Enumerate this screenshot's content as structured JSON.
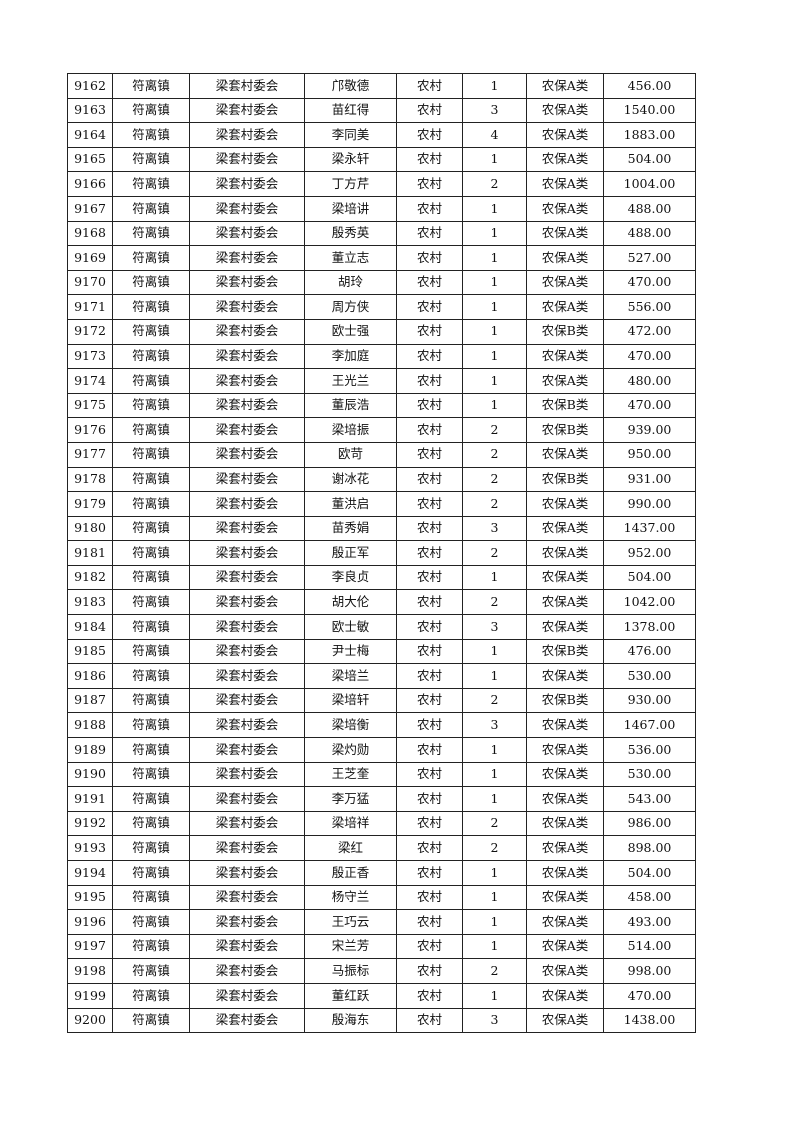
{
  "table": {
    "rows": [
      [
        "9162",
        "符离镇",
        "梁套村委会",
        "邝敬德",
        "农村",
        "1",
        "农保A类",
        "456.00"
      ],
      [
        "9163",
        "符离镇",
        "梁套村委会",
        "苗红得",
        "农村",
        "3",
        "农保A类",
        "1540.00"
      ],
      [
        "9164",
        "符离镇",
        "梁套村委会",
        "李同美",
        "农村",
        "4",
        "农保A类",
        "1883.00"
      ],
      [
        "9165",
        "符离镇",
        "梁套村委会",
        "梁永轩",
        "农村",
        "1",
        "农保A类",
        "504.00"
      ],
      [
        "9166",
        "符离镇",
        "梁套村委会",
        "丁方芹",
        "农村",
        "2",
        "农保A类",
        "1004.00"
      ],
      [
        "9167",
        "符离镇",
        "梁套村委会",
        "梁培讲",
        "农村",
        "1",
        "农保A类",
        "488.00"
      ],
      [
        "9168",
        "符离镇",
        "梁套村委会",
        "殷秀英",
        "农村",
        "1",
        "农保A类",
        "488.00"
      ],
      [
        "9169",
        "符离镇",
        "梁套村委会",
        "董立志",
        "农村",
        "1",
        "农保A类",
        "527.00"
      ],
      [
        "9170",
        "符离镇",
        "梁套村委会",
        "胡玲",
        "农村",
        "1",
        "农保A类",
        "470.00"
      ],
      [
        "9171",
        "符离镇",
        "梁套村委会",
        "周方侠",
        "农村",
        "1",
        "农保A类",
        "556.00"
      ],
      [
        "9172",
        "符离镇",
        "梁套村委会",
        "欧士强",
        "农村",
        "1",
        "农保B类",
        "472.00"
      ],
      [
        "9173",
        "符离镇",
        "梁套村委会",
        "李加庭",
        "农村",
        "1",
        "农保A类",
        "470.00"
      ],
      [
        "9174",
        "符离镇",
        "梁套村委会",
        "王光兰",
        "农村",
        "1",
        "农保A类",
        "480.00"
      ],
      [
        "9175",
        "符离镇",
        "梁套村委会",
        "董辰浩",
        "农村",
        "1",
        "农保B类",
        "470.00"
      ],
      [
        "9176",
        "符离镇",
        "梁套村委会",
        "梁培振",
        "农村",
        "2",
        "农保B类",
        "939.00"
      ],
      [
        "9177",
        "符离镇",
        "梁套村委会",
        "欧苛",
        "农村",
        "2",
        "农保A类",
        "950.00"
      ],
      [
        "9178",
        "符离镇",
        "梁套村委会",
        "谢冰花",
        "农村",
        "2",
        "农保B类",
        "931.00"
      ],
      [
        "9179",
        "符离镇",
        "梁套村委会",
        "董洪启",
        "农村",
        "2",
        "农保A类",
        "990.00"
      ],
      [
        "9180",
        "符离镇",
        "梁套村委会",
        "苗秀娟",
        "农村",
        "3",
        "农保A类",
        "1437.00"
      ],
      [
        "9181",
        "符离镇",
        "梁套村委会",
        "殷正军",
        "农村",
        "2",
        "农保A类",
        "952.00"
      ],
      [
        "9182",
        "符离镇",
        "梁套村委会",
        "李良贞",
        "农村",
        "1",
        "农保A类",
        "504.00"
      ],
      [
        "9183",
        "符离镇",
        "梁套村委会",
        "胡大伦",
        "农村",
        "2",
        "农保A类",
        "1042.00"
      ],
      [
        "9184",
        "符离镇",
        "梁套村委会",
        "欧士敏",
        "农村",
        "3",
        "农保A类",
        "1378.00"
      ],
      [
        "9185",
        "符离镇",
        "梁套村委会",
        "尹士梅",
        "农村",
        "1",
        "农保B类",
        "476.00"
      ],
      [
        "9186",
        "符离镇",
        "梁套村委会",
        "梁培兰",
        "农村",
        "1",
        "农保A类",
        "530.00"
      ],
      [
        "9187",
        "符离镇",
        "梁套村委会",
        "梁培轩",
        "农村",
        "2",
        "农保B类",
        "930.00"
      ],
      [
        "9188",
        "符离镇",
        "梁套村委会",
        "梁培衡",
        "农村",
        "3",
        "农保A类",
        "1467.00"
      ],
      [
        "9189",
        "符离镇",
        "梁套村委会",
        "梁灼勋",
        "农村",
        "1",
        "农保A类",
        "536.00"
      ],
      [
        "9190",
        "符离镇",
        "梁套村委会",
        "王芝奎",
        "农村",
        "1",
        "农保A类",
        "530.00"
      ],
      [
        "9191",
        "符离镇",
        "梁套村委会",
        "李万猛",
        "农村",
        "1",
        "农保A类",
        "543.00"
      ],
      [
        "9192",
        "符离镇",
        "梁套村委会",
        "梁培祥",
        "农村",
        "2",
        "农保A类",
        "986.00"
      ],
      [
        "9193",
        "符离镇",
        "梁套村委会",
        "梁红",
        "农村",
        "2",
        "农保A类",
        "898.00"
      ],
      [
        "9194",
        "符离镇",
        "梁套村委会",
        "殷正香",
        "农村",
        "1",
        "农保A类",
        "504.00"
      ],
      [
        "9195",
        "符离镇",
        "梁套村委会",
        "杨守兰",
        "农村",
        "1",
        "农保A类",
        "458.00"
      ],
      [
        "9196",
        "符离镇",
        "梁套村委会",
        "王巧云",
        "农村",
        "1",
        "农保A类",
        "493.00"
      ],
      [
        "9197",
        "符离镇",
        "梁套村委会",
        "宋兰芳",
        "农村",
        "1",
        "农保A类",
        "514.00"
      ],
      [
        "9198",
        "符离镇",
        "梁套村委会",
        "马振标",
        "农村",
        "2",
        "农保A类",
        "998.00"
      ],
      [
        "9199",
        "符离镇",
        "梁套村委会",
        "董红跃",
        "农村",
        "1",
        "农保A类",
        "470.00"
      ],
      [
        "9200",
        "符离镇",
        "梁套村委会",
        "殷海东",
        "农村",
        "3",
        "农保A类",
        "1438.00"
      ]
    ]
  }
}
